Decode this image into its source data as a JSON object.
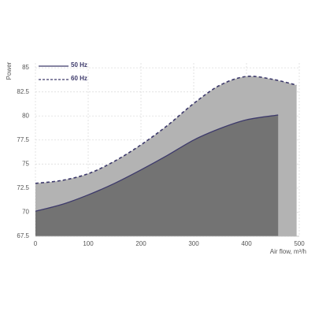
{
  "chart_data": {
    "type": "area",
    "y_label": "Power",
    "x_label": "Air flow, m³/h",
    "series": [
      {
        "name": "60 Hz",
        "color": "#3d3a6b",
        "fill": "#b3b3b3",
        "dash": true,
        "x": [
          0,
          50,
          100,
          150,
          200,
          250,
          300,
          350,
          400,
          450,
          495
        ],
        "values": [
          73.0,
          73.3,
          74.0,
          75.3,
          77.0,
          79.0,
          81.3,
          83.2,
          84.1,
          83.8,
          83.2
        ]
      },
      {
        "name": "50 Hz",
        "color": "#3d3a6b",
        "fill": "#737373",
        "dash": false,
        "x": [
          0,
          50,
          100,
          150,
          200,
          250,
          300,
          350,
          400,
          460
        ],
        "values": [
          70.1,
          70.8,
          71.8,
          73.0,
          74.4,
          75.9,
          77.5,
          78.7,
          79.6,
          80.1
        ]
      }
    ],
    "xlim": [
      0,
      500
    ],
    "xticks": [
      0,
      100,
      200,
      300,
      400,
      500
    ],
    "ylim": [
      67.5,
      85.5
    ],
    "yticks": [
      67.5,
      70,
      72.5,
      75,
      77.5,
      80,
      82.5,
      85
    ],
    "grid": true,
    "legend": "top-left"
  }
}
